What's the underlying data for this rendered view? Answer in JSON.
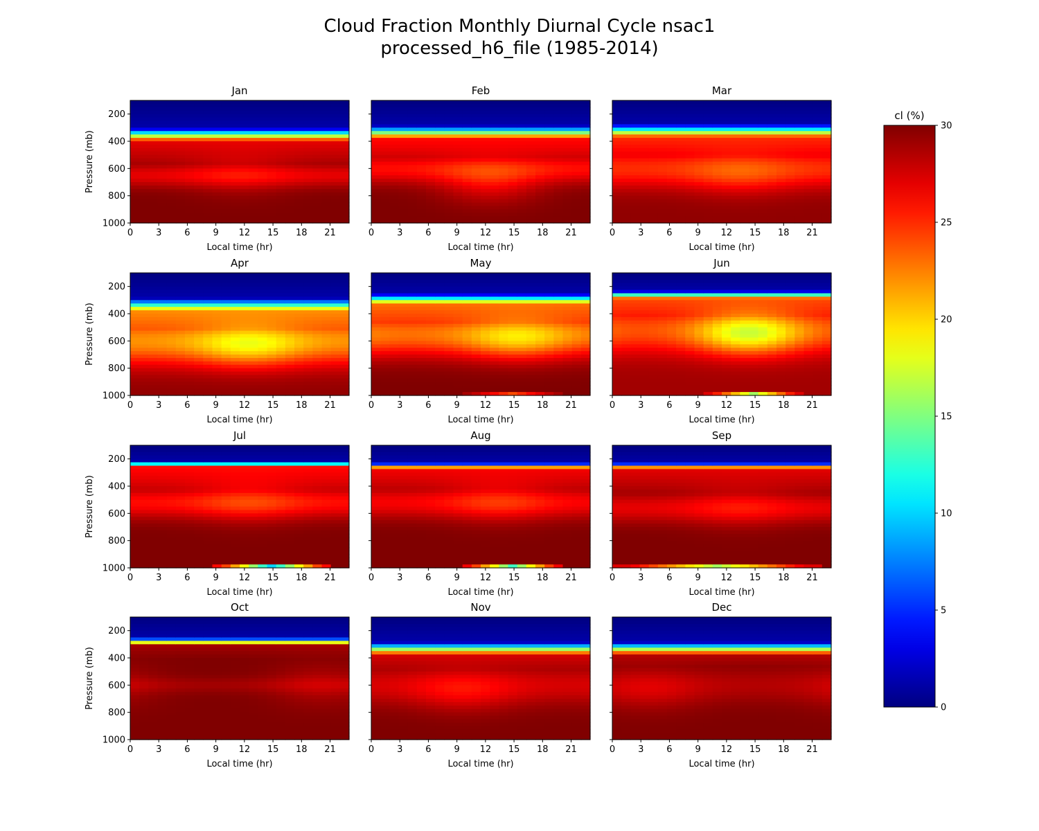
{
  "figure": {
    "title_line1": "Cloud Fraction Monthly Diurnal Cycle nsac1",
    "title_line2": "processed_h6_file (1985-2014)"
  },
  "chart_data": {
    "type": "heatmap",
    "panels": [
      "Jan",
      "Feb",
      "Mar",
      "Apr",
      "May",
      "Jun",
      "Jul",
      "Aug",
      "Sep",
      "Oct",
      "Nov",
      "Dec"
    ],
    "xlabel": "Local time (hr)",
    "ylabel": "Pressure (mb)",
    "x_ticks": [
      0,
      3,
      6,
      9,
      12,
      15,
      18,
      21
    ],
    "x_range": [
      0,
      23
    ],
    "y_ticks": [
      200,
      400,
      600,
      800,
      1000
    ],
    "y_range": [
      1000,
      100
    ],
    "colorbar": {
      "label": "cl (%)",
      "range": [
        0,
        30
      ],
      "ticks": [
        0,
        5,
        10,
        15,
        20,
        25,
        30
      ],
      "colormap": "jet"
    },
    "monthly_profiles": {
      "Jan": {
        "top_transition_mb": [
          300,
          400
        ],
        "mid_band": {
          "p": 650,
          "value": 27,
          "width": 120
        },
        "low_value": 30,
        "surface_value": 30,
        "diurnal_dip": {
          "hour": 12,
          "amount": 1.5,
          "p": 650
        }
      },
      "Feb": {
        "top_transition_mb": [
          280,
          380
        ],
        "mid_band": {
          "p": 600,
          "value": 26,
          "width": 150
        },
        "low_value": 30,
        "surface_value": 30,
        "diurnal_dip": {
          "hour": 13,
          "amount": 3,
          "p": 700
        }
      },
      "Mar": {
        "top_transition_mb": [
          270,
          370
        ],
        "mid_band": {
          "p": 600,
          "value": 25,
          "width": 200
        },
        "low_value": 29.5,
        "surface_value": 30,
        "diurnal_dip": {
          "hour": 14,
          "amount": 2,
          "p": 650
        }
      },
      "Apr": {
        "top_transition_mb": [
          280,
          380
        ],
        "mid_band": {
          "p": 600,
          "value": 22,
          "width": 250
        },
        "low_value": 29.5,
        "surface_value": 30,
        "diurnal_dip": {
          "hour": 13,
          "amount": 4,
          "p": 640
        }
      },
      "May": {
        "top_transition_mb": [
          250,
          330
        ],
        "mid_band": {
          "p": 550,
          "value": 23,
          "width": 230
        },
        "low_value": 30,
        "surface_value": 30,
        "diurnal_dip": {
          "hour": 16,
          "amount": 4,
          "p": 590
        },
        "surface_dip": {
          "hours": [
            10,
            21
          ],
          "value": 24
        }
      },
      "Jun": {
        "top_transition_mb": [
          230,
          290
        ],
        "mid_band": {
          "p": 520,
          "value": 24,
          "width": 240
        },
        "low_value": 29,
        "surface_value": 30,
        "diurnal_dip": {
          "hour": 15,
          "amount": 7,
          "p": 550
        },
        "surface_dip": {
          "hours": [
            10,
            21
          ],
          "value": 16
        }
      },
      "Jul": {
        "top_transition_mb": [
          220,
          260
        ],
        "mid_band": {
          "p": 520,
          "value": 26,
          "width": 160
        },
        "low_value": 30,
        "surface_value": 30,
        "diurnal_dip": {
          "hour": 13,
          "amount": 2,
          "p": 520
        },
        "surface_dip": {
          "hours": [
            9,
            22
          ],
          "value": 10
        }
      },
      "Aug": {
        "top_transition_mb": [
          230,
          270
        ],
        "mid_band": {
          "p": 520,
          "value": 26.5,
          "width": 160
        },
        "low_value": 30,
        "surface_value": 30,
        "diurnal_dip": {
          "hour": 14,
          "amount": 2,
          "p": 520
        },
        "surface_dip": {
          "hours": [
            10,
            21
          ],
          "value": 13
        }
      },
      "Sep": {
        "top_transition_mb": [
          230,
          270
        ],
        "mid_band": {
          "p": 560,
          "value": 27,
          "width": 150
        },
        "low_value": 30,
        "surface_value": 30,
        "diurnal_dip": {
          "hour": 14,
          "amount": 1.5,
          "p": 560
        },
        "surface_dip": {
          "hours": [
            0,
            23
          ],
          "value": 16
        }
      },
      "Oct": {
        "top_transition_mb": [
          250,
          310
        ],
        "mid_band": {
          "p": 600,
          "value": 29,
          "width": 80
        },
        "low_value": 30,
        "surface_value": 30,
        "diurnal_dip": {
          "hour": 21,
          "amount": 1.5,
          "p": 600
        }
      },
      "Nov": {
        "top_transition_mb": [
          280,
          380
        ],
        "mid_band": {
          "p": 600,
          "value": 27.5,
          "width": 200
        },
        "low_value": 30,
        "surface_value": 30,
        "diurnal_dip": {
          "hour": 10,
          "amount": 2,
          "p": 650
        }
      },
      "Dec": {
        "top_transition_mb": [
          280,
          380
        ],
        "mid_band": {
          "p": 600,
          "value": 28.5,
          "width": 180
        },
        "low_value": 30,
        "surface_value": 30,
        "diurnal_dip": {
          "hour": 4,
          "amount": 1.5,
          "p": 640
        }
      }
    }
  }
}
